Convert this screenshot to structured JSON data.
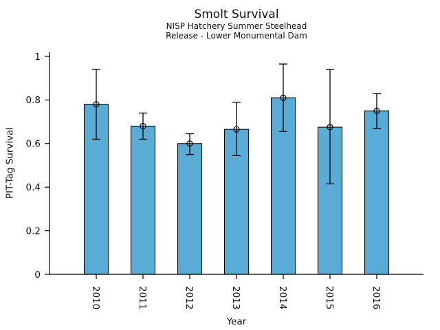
{
  "figure": {
    "title": "Smolt Survival",
    "subtitle1": "NISP Hatchery Summer Steelhead",
    "subtitle2": "Release - Lower Monumental Dam",
    "xlabel": "Year",
    "ylabel": "PIT-Tag Survival"
  },
  "chart_data": {
    "type": "bar",
    "title": "Smolt Survival",
    "subtitle": [
      "NISP Hatchery Summer Steelhead",
      "Release - Lower Monumental Dam"
    ],
    "xlabel": "Year",
    "ylabel": "PIT-Tag Survival",
    "categories": [
      "2010",
      "2011",
      "2012",
      "2013",
      "2014",
      "2015",
      "2016"
    ],
    "series": [
      {
        "name": "PIT-Tag Survival",
        "values": [
          0.78,
          0.68,
          0.6,
          0.665,
          0.81,
          0.675,
          0.75
        ],
        "error_low": [
          0.62,
          0.62,
          0.55,
          0.545,
          0.655,
          0.415,
          0.67
        ],
        "error_high": [
          0.94,
          0.74,
          0.645,
          0.79,
          0.965,
          0.94,
          0.83
        ]
      }
    ],
    "ylim": [
      0,
      1.02
    ],
    "yticks": [
      0,
      0.2,
      0.4,
      0.6,
      0.8,
      1
    ],
    "ytick_labels": [
      "0",
      "0.2",
      "0.4",
      "0.6",
      "0.8",
      "1"
    ],
    "xtick_label_rotation_deg": 90,
    "grid": false,
    "legend": null,
    "bar_color": "#5aabd5",
    "bar_edge_color": "#000000",
    "errorbar_color": "#000000",
    "axis_color": "#000000",
    "marker": "open-circle"
  }
}
